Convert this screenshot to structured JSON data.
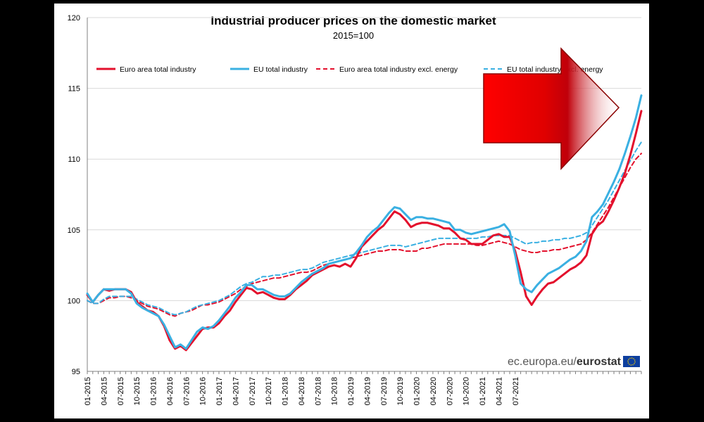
{
  "chart_data": {
    "type": "line",
    "title": "Industrial producer prices on the domestic market",
    "subtitle": "2015=100",
    "xlabel": "",
    "ylabel": "",
    "ylim": [
      95,
      120
    ],
    "yticks": [
      95,
      100,
      105,
      110,
      115,
      120
    ],
    "x_tick_labels": [
      "01-2015",
      "04-2015",
      "07-2015",
      "10-2015",
      "01-2016",
      "04-2016",
      "07-2016",
      "10-2016",
      "01-2017",
      "04-2017",
      "07-2017",
      "10-2017",
      "01-2018",
      "04-2018",
      "07-2018",
      "10-2018",
      "01-2019",
      "04-2019",
      "07-2019",
      "10-2019",
      "01-2020",
      "04-2020",
      "07-2020",
      "10-2020",
      "01-2021",
      "04-2021",
      "07-2021"
    ],
    "x_start": "2015-01",
    "legend_position": "top",
    "grid": "horizontal",
    "series": [
      {
        "name": "Euro area total industry",
        "color": "#e3102c",
        "dash": false,
        "values": [
          100.4,
          99.9,
          100.4,
          100.8,
          100.7,
          100.8,
          100.8,
          100.8,
          100.6,
          99.9,
          99.6,
          99.3,
          99.2,
          98.9,
          98.2,
          97.2,
          96.6,
          96.8,
          96.5,
          97.0,
          97.5,
          98.0,
          98.1,
          98.1,
          98.4,
          98.9,
          99.3,
          99.9,
          100.4,
          100.9,
          100.8,
          100.5,
          100.6,
          100.4,
          100.2,
          100.1,
          100.1,
          100.4,
          100.8,
          101.1,
          101.4,
          101.8,
          102.0,
          102.2,
          102.4,
          102.5,
          102.4,
          102.6,
          102.4,
          103.0,
          103.8,
          104.2,
          104.6,
          105.0,
          105.3,
          105.8,
          106.3,
          106.1,
          105.7,
          105.2,
          105.4,
          105.5,
          105.5,
          105.4,
          105.3,
          105.1,
          105.1,
          104.8,
          104.4,
          104.3,
          104.0,
          104.0,
          104.0,
          104.3,
          104.6,
          104.7,
          104.5,
          104.5,
          103.5,
          102.0,
          100.3,
          99.7,
          100.3,
          100.8,
          101.2,
          101.3,
          101.6,
          101.9,
          102.2,
          102.4,
          102.7,
          103.2,
          104.7,
          105.3,
          105.6,
          106.3,
          107.1,
          108.0,
          109.0,
          110.3,
          111.8,
          113.4
        ]
      },
      {
        "name": "EU total industry",
        "color": "#3ab0e2",
        "dash": false,
        "values": [
          100.5,
          99.9,
          100.4,
          100.8,
          100.8,
          100.8,
          100.8,
          100.8,
          100.5,
          99.8,
          99.5,
          99.3,
          99.1,
          98.9,
          98.3,
          97.5,
          96.7,
          96.9,
          96.6,
          97.2,
          97.8,
          98.1,
          98.0,
          98.2,
          98.6,
          99.1,
          99.6,
          100.2,
          100.6,
          101.1,
          101.1,
          100.8,
          100.8,
          100.6,
          100.4,
          100.3,
          100.3,
          100.5,
          100.9,
          101.3,
          101.6,
          101.9,
          102.1,
          102.3,
          102.6,
          102.7,
          102.8,
          102.9,
          103.0,
          103.4,
          103.9,
          104.5,
          104.9,
          105.2,
          105.7,
          106.2,
          106.6,
          106.5,
          106.1,
          105.7,
          105.9,
          105.9,
          105.8,
          105.8,
          105.7,
          105.6,
          105.5,
          105.0,
          105.0,
          104.8,
          104.7,
          104.8,
          104.9,
          105.0,
          105.1,
          105.2,
          105.4,
          104.9,
          103.2,
          101.2,
          100.8,
          100.6,
          101.1,
          101.5,
          101.9,
          102.1,
          102.3,
          102.6,
          102.9,
          103.1,
          103.5,
          104.2,
          105.9,
          106.3,
          106.8,
          107.6,
          108.4,
          109.3,
          110.4,
          111.6,
          112.9,
          114.5
        ]
      },
      {
        "name": "Euro area total industry excl. energy",
        "color": "#e3102c",
        "dash": true,
        "values": [
          100.0,
          99.8,
          99.8,
          100.0,
          100.2,
          100.2,
          100.3,
          100.3,
          100.2,
          100.0,
          99.8,
          99.6,
          99.5,
          99.4,
          99.2,
          99.0,
          98.9,
          99.1,
          99.2,
          99.3,
          99.5,
          99.7,
          99.7,
          99.8,
          99.9,
          100.1,
          100.3,
          100.5,
          100.8,
          101.0,
          101.2,
          101.3,
          101.4,
          101.5,
          101.6,
          101.6,
          101.7,
          101.8,
          101.9,
          102.0,
          102.0,
          102.1,
          102.3,
          102.5,
          102.6,
          102.7,
          102.8,
          102.9,
          103.0,
          103.1,
          103.2,
          103.3,
          103.4,
          103.5,
          103.5,
          103.6,
          103.6,
          103.6,
          103.5,
          103.5,
          103.5,
          103.7,
          103.7,
          103.8,
          103.9,
          104.0,
          104.0,
          104.0,
          104.0,
          104.0,
          104.0,
          103.9,
          103.9,
          104.0,
          104.1,
          104.2,
          104.1,
          104.0,
          103.8,
          103.6,
          103.5,
          103.4,
          103.4,
          103.5,
          103.5,
          103.6,
          103.6,
          103.7,
          103.8,
          103.9,
          104.0,
          104.3,
          104.8,
          105.4,
          106.0,
          106.6,
          107.3,
          108.0,
          108.7,
          109.4,
          110.0,
          110.4
        ]
      },
      {
        "name": "EU total industry excl. energy",
        "color": "#3ab0e2",
        "dash": true,
        "values": [
          100.0,
          99.8,
          99.8,
          100.1,
          100.3,
          100.3,
          100.3,
          100.3,
          100.3,
          100.1,
          99.9,
          99.7,
          99.6,
          99.5,
          99.3,
          99.1,
          99.0,
          99.1,
          99.2,
          99.4,
          99.6,
          99.7,
          99.8,
          99.9,
          100.0,
          100.2,
          100.4,
          100.7,
          101.0,
          101.2,
          101.3,
          101.5,
          101.7,
          101.7,
          101.8,
          101.8,
          101.9,
          102.0,
          102.1,
          102.2,
          102.2,
          102.3,
          102.5,
          102.7,
          102.8,
          102.9,
          103.0,
          103.1,
          103.2,
          103.3,
          103.4,
          103.5,
          103.6,
          103.7,
          103.8,
          103.9,
          103.9,
          103.9,
          103.8,
          103.9,
          104.0,
          104.1,
          104.2,
          104.3,
          104.4,
          104.4,
          104.4,
          104.4,
          104.4,
          104.4,
          104.4,
          104.4,
          104.5,
          104.5,
          104.6,
          104.6,
          104.6,
          104.6,
          104.4,
          104.2,
          104.0,
          104.1,
          104.1,
          104.2,
          104.2,
          104.3,
          104.3,
          104.4,
          104.4,
          104.5,
          104.6,
          104.8,
          105.3,
          105.9,
          106.5,
          107.1,
          107.8,
          108.5,
          109.2,
          109.9,
          110.6,
          111.2
        ]
      }
    ]
  },
  "source_text_regular": "ec.europa.eu/",
  "source_text_bold": "eurostat",
  "eu_flag_icon": "eu-flag-icon",
  "arrow_color": "#e00000"
}
